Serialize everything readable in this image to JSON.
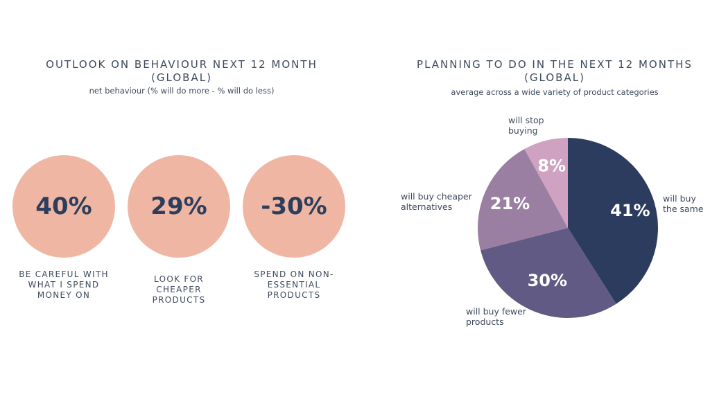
{
  "left": {
    "title_line1": "OUTLOOK ON BEHAVIOUR NEXT 12 MONTH",
    "title_line2": "(GLOBAL)",
    "subtitle": "net behaviour (% will do more - % will do less)",
    "color": "#efb7a3",
    "items": [
      {
        "value": "40%",
        "label": "BE CAREFUL WITH WHAT I SPEND MONEY ON"
      },
      {
        "value": "29%",
        "label": "LOOK FOR CHEAPER PRODUCTS"
      },
      {
        "value": "-30%",
        "label": "SPEND ON NON-ESSENTIAL PRODUCTS"
      }
    ]
  },
  "right": {
    "title_line1": "PLANNING TO DO IN THE NEXT 12 MONTHS",
    "title_line2": "(GLOBAL)",
    "subtitle": "average across a wide variety of product categories"
  },
  "chart_data": {
    "type": "pie",
    "title": "PLANNING TO DO IN THE NEXT 12 MONTHS (GLOBAL)",
    "start": "top, clockwise",
    "slices": [
      {
        "name": "will buy the same",
        "value": 41,
        "label": "41%",
        "color": "#2b3c5e"
      },
      {
        "name": "will buy fewer products",
        "value": 30,
        "label": "30%",
        "color": "#615a84"
      },
      {
        "name": "will buy cheaper alternatives",
        "value": 21,
        "label": "21%",
        "color": "#9a7fa3"
      },
      {
        "name": "will stop buying",
        "value": 8,
        "label": "8%",
        "color": "#cfa2c2"
      }
    ]
  }
}
